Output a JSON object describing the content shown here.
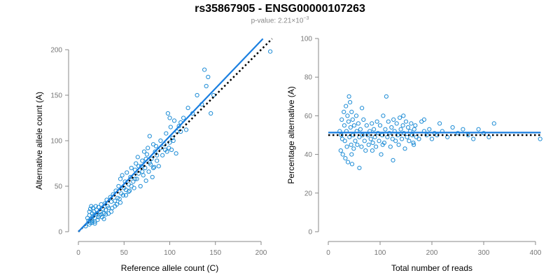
{
  "title": "rs35867905 - ENSG00000107263",
  "subtitle": {
    "prefix": "p-value: 2.21×10",
    "exponent": "−3"
  },
  "colors": {
    "points": "#1f8dd6",
    "fit_line": "#1a7fe0",
    "reference_line": "#000000"
  },
  "chart_data": [
    {
      "type": "scatter",
      "xlabel": "Reference allele count (C)",
      "ylabel": "Alternative allele count (A)",
      "xlim": [
        0,
        200
      ],
      "ylim": [
        0,
        200
      ],
      "xticks": [
        "0",
        "50",
        "100",
        "150",
        "200"
      ],
      "yticks": [
        "0",
        "50",
        "100",
        "150",
        "200"
      ],
      "fit_line": [
        [
          0,
          0
        ],
        [
          202,
          212
        ]
      ],
      "reference_line": [
        [
          0,
          0
        ],
        [
          212,
          212
        ]
      ],
      "points": [
        [
          10,
          15
        ],
        [
          11,
          12
        ],
        [
          12,
          18
        ],
        [
          12,
          22
        ],
        [
          13,
          10
        ],
        [
          13,
          25
        ],
        [
          14,
          14
        ],
        [
          14,
          28
        ],
        [
          15,
          20
        ],
        [
          15,
          12
        ],
        [
          16,
          17
        ],
        [
          16,
          26
        ],
        [
          17,
          22
        ],
        [
          18,
          11
        ],
        [
          18,
          15
        ],
        [
          19,
          28
        ],
        [
          20,
          20
        ],
        [
          20,
          24
        ],
        [
          21,
          13
        ],
        [
          22,
          27
        ],
        [
          23,
          18
        ],
        [
          24,
          22
        ],
        [
          25,
          30
        ],
        [
          26,
          16
        ],
        [
          27,
          25
        ],
        [
          28,
          20
        ],
        [
          29,
          31
        ],
        [
          30,
          24
        ],
        [
          31,
          35
        ],
        [
          32,
          28
        ],
        [
          33,
          20
        ],
        [
          35,
          38
        ],
        [
          36,
          33
        ],
        [
          37,
          26
        ],
        [
          38,
          41
        ],
        [
          40,
          34
        ],
        [
          41,
          45
        ],
        [
          42,
          30
        ],
        [
          44,
          50
        ],
        [
          45,
          36
        ],
        [
          46,
          58
        ],
        [
          47,
          42
        ],
        [
          48,
          62
        ],
        [
          50,
          48
        ],
        [
          51,
          55
        ],
        [
          52,
          40
        ],
        [
          53,
          65
        ],
        [
          55,
          52
        ],
        [
          56,
          45
        ],
        [
          57,
          60
        ],
        [
          58,
          70
        ],
        [
          60,
          55
        ],
        [
          61,
          48
        ],
        [
          62,
          68
        ],
        [
          63,
          75
        ],
        [
          64,
          58
        ],
        [
          65,
          82
        ],
        [
          66,
          64
        ],
        [
          68,
          50
        ],
        [
          69,
          72
        ],
        [
          70,
          78
        ],
        [
          71,
          62
        ],
        [
          72,
          88
        ],
        [
          73,
          70
        ],
        [
          74,
          56
        ],
        [
          75,
          85
        ],
        [
          76,
          92
        ],
        [
          77,
          66
        ],
        [
          78,
          105
        ],
        [
          79,
          74
        ],
        [
          80,
          80
        ],
        [
          81,
          60
        ],
        [
          82,
          96
        ],
        [
          83,
          71
        ],
        [
          84,
          88
        ],
        [
          85,
          94
        ],
        [
          86,
          78
        ],
        [
          88,
          72
        ],
        [
          90,
          100
        ],
        [
          92,
          84
        ],
        [
          94,
          96
        ],
        [
          96,
          108
        ],
        [
          97,
          88
        ],
        [
          98,
          130
        ],
        [
          99,
          92
        ],
        [
          100,
          98
        ],
        [
          101,
          115
        ],
        [
          102,
          90
        ],
        [
          103,
          103
        ],
        [
          105,
          122
        ],
        [
          108,
          110
        ],
        [
          110,
          116
        ],
        [
          112,
          120
        ],
        [
          115,
          125
        ],
        [
          118,
          112
        ],
        [
          120,
          136
        ],
        [
          125,
          130
        ],
        [
          130,
          150
        ],
        [
          135,
          140
        ],
        [
          138,
          178
        ],
        [
          140,
          160
        ],
        [
          142,
          170
        ],
        [
          145,
          130
        ],
        [
          148,
          150
        ],
        [
          210,
          198
        ],
        [
          8,
          6
        ],
        [
          12,
          8
        ],
        [
          15,
          10
        ],
        [
          18,
          9
        ],
        [
          22,
          16
        ],
        [
          25,
          19
        ],
        [
          28,
          14
        ],
        [
          30,
          19
        ],
        [
          33,
          26
        ],
        [
          36,
          22
        ],
        [
          40,
          28
        ],
        [
          43,
          37
        ],
        [
          46,
          32
        ],
        [
          49,
          40
        ],
        [
          52,
          46
        ],
        [
          55,
          44
        ],
        [
          58,
          50
        ],
        [
          62,
          58
        ],
        [
          66,
          72
        ],
        [
          70,
          66
        ],
        [
          74,
          80
        ],
        [
          78,
          76
        ],
        [
          82,
          70
        ],
        [
          86,
          84
        ],
        [
          90,
          92
        ],
        [
          95,
          90
        ],
        [
          100,
          125
        ],
        [
          104,
          100
        ],
        [
          107,
          86
        ],
        [
          112,
          110
        ]
      ]
    },
    {
      "type": "scatter",
      "xlabel": "Total number of reads",
      "ylabel": "Percentage alternative (A)",
      "xlim": [
        0,
        400
      ],
      "ylim": [
        0,
        100
      ],
      "xticks": [
        "0",
        "100",
        "200",
        "300",
        "400"
      ],
      "yticks": [
        "0",
        "20",
        "40",
        "60",
        "80",
        "100"
      ],
      "fit_line": [
        [
          0,
          51.3
        ],
        [
          410,
          51.3
        ]
      ],
      "reference_line": [
        [
          0,
          50
        ],
        [
          410,
          50
        ]
      ],
      "points": [
        [
          22,
          52
        ],
        [
          24,
          42
        ],
        [
          26,
          58
        ],
        [
          27,
          48
        ],
        [
          28,
          40
        ],
        [
          30,
          62
        ],
        [
          31,
          55
        ],
        [
          32,
          47
        ],
        [
          33,
          38
        ],
        [
          34,
          65
        ],
        [
          35,
          52
        ],
        [
          36,
          44
        ],
        [
          37,
          60
        ],
        [
          38,
          36
        ],
        [
          39,
          57
        ],
        [
          40,
          70
        ],
        [
          41,
          49
        ],
        [
          42,
          67
        ],
        [
          43,
          54
        ],
        [
          44,
          45
        ],
        [
          45,
          62
        ],
        [
          46,
          35
        ],
        [
          47,
          58
        ],
        [
          48,
          50
        ],
        [
          49,
          43
        ],
        [
          50,
          55
        ],
        [
          52,
          47
        ],
        [
          54,
          60
        ],
        [
          55,
          52
        ],
        [
          56,
          45
        ],
        [
          58,
          56
        ],
        [
          60,
          49
        ],
        [
          62,
          53
        ],
        [
          64,
          44
        ],
        [
          66,
          50
        ],
        [
          68,
          58
        ],
        [
          70,
          47
        ],
        [
          72,
          42
        ],
        [
          74,
          55
        ],
        [
          76,
          50
        ],
        [
          78,
          45
        ],
        [
          80,
          52
        ],
        [
          82,
          48
        ],
        [
          84,
          56
        ],
        [
          86,
          46
        ],
        [
          88,
          53
        ],
        [
          90,
          49
        ],
        [
          92,
          44
        ],
        [
          94,
          57
        ],
        [
          96,
          51
        ],
        [
          98,
          47
        ],
        [
          100,
          55
        ],
        [
          102,
          40
        ],
        [
          104,
          50
        ],
        [
          106,
          60
        ],
        [
          108,
          46
        ],
        [
          110,
          53
        ],
        [
          112,
          70
        ],
        [
          114,
          49
        ],
        [
          116,
          57
        ],
        [
          118,
          51
        ],
        [
          120,
          44
        ],
        [
          122,
          54
        ],
        [
          124,
          48
        ],
        [
          126,
          58
        ],
        [
          128,
          52
        ],
        [
          130,
          47
        ],
        [
          132,
          56
        ],
        [
          134,
          50
        ],
        [
          136,
          45
        ],
        [
          138,
          59
        ],
        [
          140,
          53
        ],
        [
          142,
          48
        ],
        [
          144,
          55
        ],
        [
          146,
          51
        ],
        [
          148,
          43
        ],
        [
          150,
          57
        ],
        [
          152,
          49
        ],
        [
          154,
          54
        ],
        [
          156,
          47
        ],
        [
          158,
          52
        ],
        [
          160,
          56
        ],
        [
          162,
          50
        ],
        [
          164,
          46
        ],
        [
          166,
          53
        ],
        [
          168,
          55
        ],
        [
          170,
          49
        ],
        [
          175,
          48
        ],
        [
          180,
          57
        ],
        [
          185,
          52
        ],
        [
          190,
          50
        ],
        [
          195,
          53
        ],
        [
          200,
          48
        ],
        [
          205,
          51
        ],
        [
          210,
          50
        ],
        [
          215,
          56
        ],
        [
          220,
          52
        ],
        [
          230,
          49
        ],
        [
          240,
          54
        ],
        [
          250,
          51
        ],
        [
          260,
          53
        ],
        [
          270,
          50
        ],
        [
          280,
          48
        ],
        [
          290,
          53
        ],
        [
          300,
          51
        ],
        [
          310,
          49
        ],
        [
          320,
          56
        ],
        [
          409,
          48
        ],
        [
          25,
          50
        ],
        [
          45,
          40
        ],
        [
          65,
          64
        ],
        [
          85,
          42
        ],
        [
          105,
          45
        ],
        [
          125,
          37
        ],
        [
          145,
          60
        ],
        [
          165,
          45
        ],
        [
          185,
          58
        ],
        [
          60,
          33
        ]
      ]
    }
  ]
}
